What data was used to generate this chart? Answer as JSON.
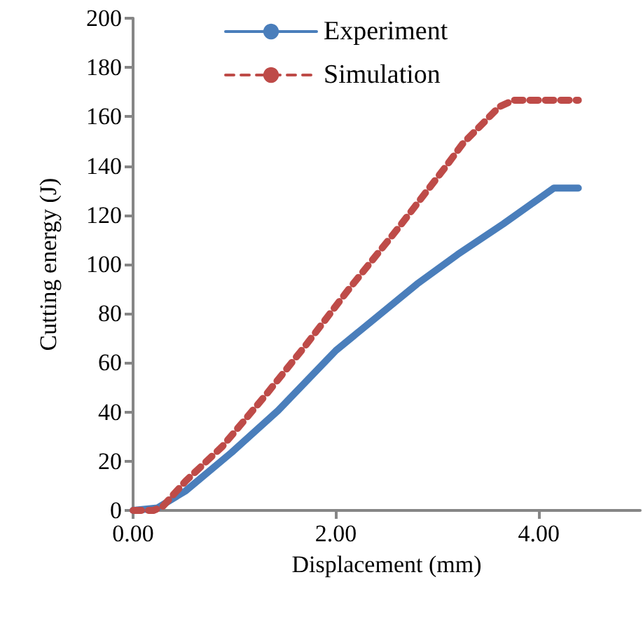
{
  "chart_data": {
    "type": "line",
    "xlabel": "Displacement (mm)",
    "ylabel": "Cutting energy (J)",
    "xlim": [
      0,
      5
    ],
    "xticks": [
      {
        "value": 0,
        "label": "0.00"
      },
      {
        "value": 2,
        "label": "2.00"
      },
      {
        "value": 4,
        "label": "4.00"
      }
    ],
    "ylim": [
      0,
      200
    ],
    "yticks": [
      0,
      20,
      40,
      60,
      80,
      100,
      120,
      140,
      160,
      180,
      200
    ],
    "grid": false,
    "legend": "top left",
    "marker": "none",
    "series": [
      {
        "name": "Experiment",
        "color": "#4a7ebb",
        "line_style": "solid",
        "x": [
          0,
          0.24,
          0.52,
          0.97,
          1.43,
          2.0,
          2.8,
          3.2,
          3.65,
          4.15,
          4.39
        ],
        "values": [
          0,
          1,
          8,
          23.5,
          40.6,
          65,
          92,
          104,
          116.4,
          131,
          131
        ]
      },
      {
        "name": "Simulation",
        "color": "#be4b48",
        "line_style": "dashed",
        "x": [
          0,
          0.2,
          0.29,
          0.52,
          0.88,
          1.29,
          1.7,
          2.11,
          2.61,
          3.07,
          3.25,
          3.61,
          3.75,
          4.39
        ],
        "values": [
          0,
          0,
          1.5,
          12,
          26,
          46,
          67,
          89,
          114.5,
          139,
          149,
          164,
          166.7,
          166.7
        ]
      }
    ]
  }
}
